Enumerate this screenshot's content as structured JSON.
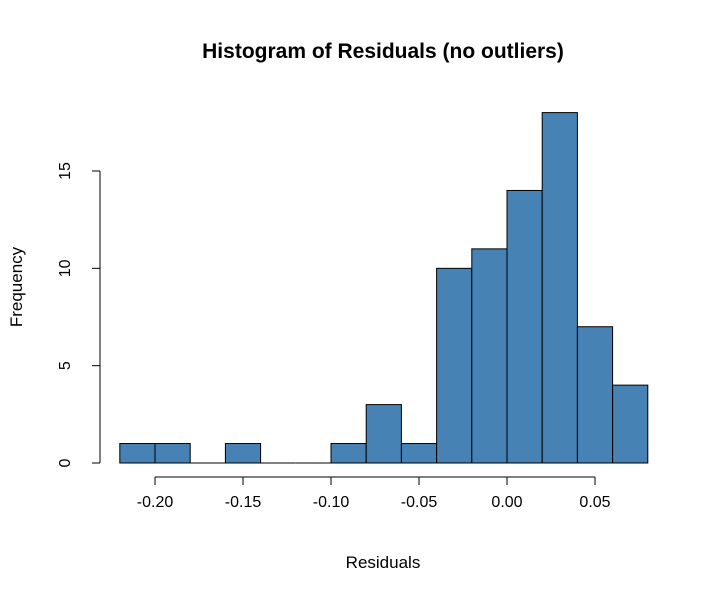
{
  "chart_data": {
    "type": "bar",
    "title": "Histogram of Residuals (no outliers)",
    "xlabel": "Residuals",
    "ylabel": "Frequency",
    "bar_color": "#4682b4",
    "bins": [
      {
        "from": -0.22,
        "to": -0.2,
        "count": 1
      },
      {
        "from": -0.2,
        "to": -0.18,
        "count": 1
      },
      {
        "from": -0.18,
        "to": -0.16,
        "count": 0
      },
      {
        "from": -0.16,
        "to": -0.14,
        "count": 1
      },
      {
        "from": -0.14,
        "to": -0.12,
        "count": 0
      },
      {
        "from": -0.12,
        "to": -0.1,
        "count": 0
      },
      {
        "from": -0.1,
        "to": -0.08,
        "count": 1
      },
      {
        "from": -0.08,
        "to": -0.06,
        "count": 3
      },
      {
        "from": -0.06,
        "to": -0.04,
        "count": 1
      },
      {
        "from": -0.04,
        "to": -0.02,
        "count": 10
      },
      {
        "from": -0.02,
        "to": 0.0,
        "count": 11
      },
      {
        "from": 0.0,
        "to": 0.02,
        "count": 14
      },
      {
        "from": 0.02,
        "to": 0.04,
        "count": 18
      },
      {
        "from": 0.04,
        "to": 0.06,
        "count": 7
      },
      {
        "from": 0.06,
        "to": 0.08,
        "count": 4
      }
    ],
    "xlim": [
      -0.22,
      0.08
    ],
    "ylim": [
      0,
      18
    ],
    "x_ticks": [
      -0.2,
      -0.15,
      -0.1,
      -0.05,
      0.0,
      0.05
    ],
    "x_tick_labels": [
      "-0.20",
      "-0.15",
      "-0.10",
      "-0.05",
      "0.00",
      "0.05"
    ],
    "y_ticks": [
      0,
      5,
      10,
      15
    ],
    "y_tick_labels": [
      "0",
      "5",
      "10",
      "15"
    ],
    "grid": false,
    "legend": "none"
  }
}
